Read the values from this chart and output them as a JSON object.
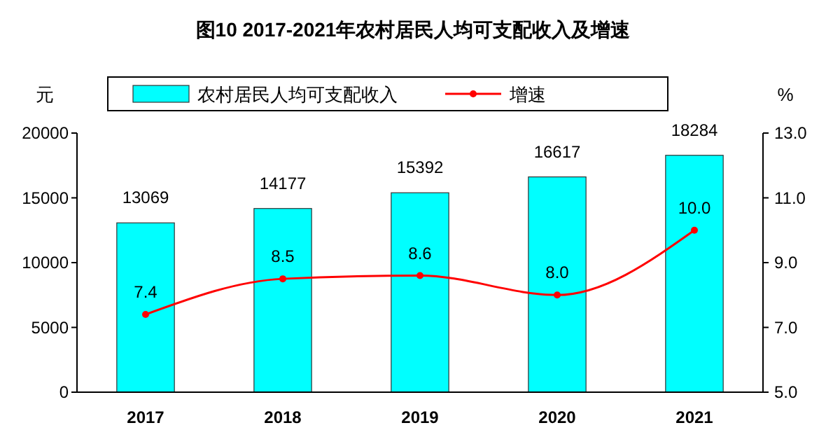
{
  "chart_data": {
    "type": "bar",
    "title": "图10  2017-2021年农村居民人均可支配收入及增速",
    "ylabel": "元",
    "y2label": "%",
    "categories": [
      "2017",
      "2018",
      "2019",
      "2020",
      "2021"
    ],
    "series": [
      {
        "name": "农村居民人均可支配收入",
        "color": "#00ffff",
        "values": [
          13069,
          14177,
          15392,
          16617,
          18284
        ]
      },
      {
        "name": "增速",
        "type": "line",
        "axis": "y2",
        "color": "#ff0000",
        "values": [
          7.4,
          8.5,
          8.6,
          8.0,
          10.0
        ],
        "value_labels": [
          "7.4",
          "8.5",
          "8.6",
          "8.0",
          "10.0"
        ]
      }
    ],
    "ylim": [
      0,
      20000
    ],
    "yticks": [
      0,
      5000,
      10000,
      15000,
      20000
    ],
    "y2lim": [
      5,
      13
    ],
    "y2ticks": [
      {
        "value": 5,
        "label": "5.0"
      },
      {
        "value": 7,
        "label": "7.0"
      },
      {
        "value": 9,
        "label": "9.0"
      },
      {
        "value": 11,
        "label": "11.0"
      },
      {
        "value": 13,
        "label": "13.0"
      }
    ],
    "data_labels": true,
    "legend": "top",
    "marker": "circle",
    "grid": false
  }
}
